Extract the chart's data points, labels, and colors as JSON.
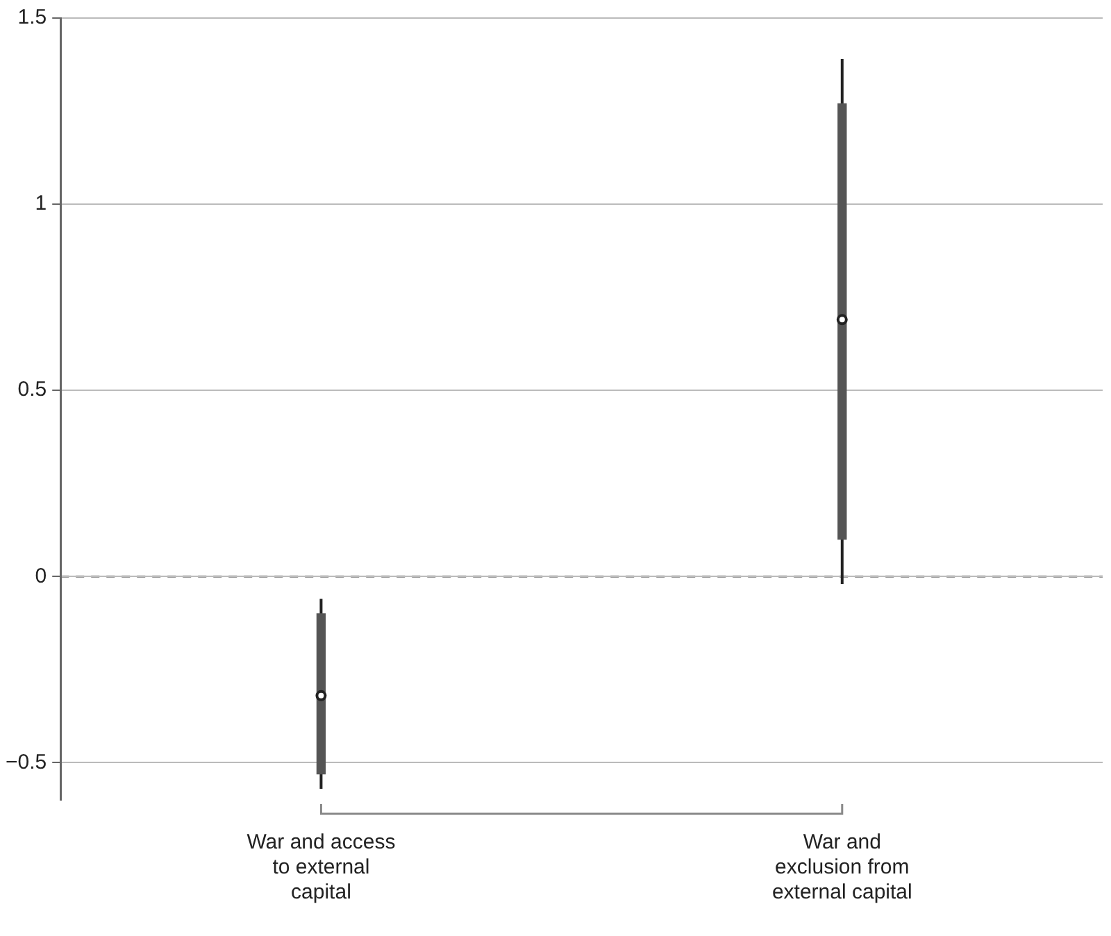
{
  "chart_data": {
    "type": "scatter",
    "categories": [
      "War and access to external capital",
      "War and exclusion from external capital"
    ],
    "series": [
      {
        "type": "bar",
        "color": "#555555",
        "base": [
          -0.53,
          0.1
        ],
        "values": [
          0.43,
          1.17
        ]
      },
      {
        "color": "#222222",
        "values": [
          -0.32,
          0.69
        ],
        "errors": [
          [
            -0.57,
            -0.06
          ],
          [
            -0.02,
            1.39
          ]
        ],
        "marker": "circle"
      }
    ],
    "ylim": [
      -0.6,
      1.5
    ],
    "yticks": [
      {
        "value": -0.5,
        "label": "−0.5"
      },
      0,
      0.5,
      1,
      1.5
    ],
    "grid": "y",
    "legend": false,
    "ref_lines": [
      {
        "axis": "y",
        "value": 0,
        "line_style": "dashed",
        "color": "#777777"
      }
    ]
  }
}
